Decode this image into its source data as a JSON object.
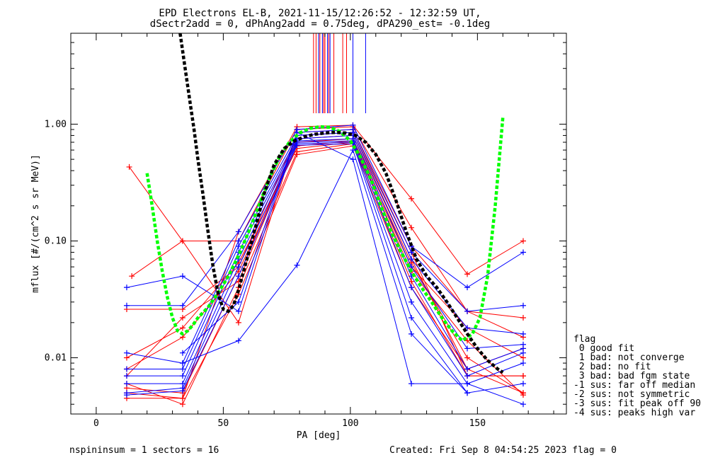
{
  "chart_data": {
    "type": "line",
    "title_line1": "EPD Electrons EL-B, 2021-11-15/12:26:52 - 12:32:59 UT,",
    "title_line2": "dSectr2add = 0, dPhAng2add = 0.75deg, dPA290_est=  -0.1deg",
    "xlabel": "PA [deg]",
    "ylabel": "mflux [#/(cm^2 s sr MeV)]",
    "xlim": [
      -10,
      185
    ],
    "ylim": [
      0.0033,
      6.0
    ],
    "yscale": "log",
    "x_ticks": [
      0,
      50,
      100,
      150
    ],
    "y_ticks": [
      0.01,
      0.1,
      1.0
    ],
    "y_tick_labels": [
      "0.01",
      "0.10",
      "1.00"
    ],
    "colors": {
      "red": "#ff0000",
      "blue": "#0000ff",
      "black": "#000000",
      "green": "#00ff00"
    },
    "series": [
      {
        "color": "red",
        "x": [
          12,
          34,
          56,
          79,
          101,
          124,
          146,
          168
        ],
        "y": [
          0.0045,
          0.0045,
          0.12,
          0.95,
          0.98,
          0.23,
          0.052,
          0.1
        ]
      },
      {
        "color": "red",
        "x": [
          13,
          34,
          56,
          79,
          101,
          124,
          146,
          168
        ],
        "y": [
          0.43,
          0.1,
          0.1,
          0.9,
          0.95,
          0.13,
          0.025,
          0.022
        ]
      },
      {
        "color": "red",
        "x": [
          14,
          34,
          56,
          79,
          101,
          124,
          146,
          168
        ],
        "y": [
          0.05,
          0.1,
          0.02,
          0.85,
          0.9,
          0.09,
          0.025,
          0.015
        ]
      },
      {
        "color": "red",
        "x": [
          12,
          34,
          56,
          79,
          101,
          124,
          146,
          168
        ],
        "y": [
          0.026,
          0.026,
          0.06,
          0.8,
          0.85,
          0.08,
          0.007,
          0.007
        ]
      },
      {
        "color": "red",
        "x": [
          12,
          34,
          56,
          79,
          101,
          124,
          146,
          168
        ],
        "y": [
          0.0055,
          0.005,
          0.05,
          0.75,
          0.8,
          0.07,
          0.008,
          0.012
        ]
      },
      {
        "color": "red",
        "x": [
          12,
          34,
          56,
          79,
          101,
          124,
          146,
          168
        ],
        "y": [
          0.007,
          0.022,
          0.045,
          0.7,
          0.75,
          0.065,
          0.01,
          0.005
        ]
      },
      {
        "color": "red",
        "x": [
          12,
          34,
          56,
          79,
          101,
          124,
          146,
          168
        ],
        "y": [
          0.008,
          0.015,
          0.055,
          0.65,
          0.72,
          0.06,
          0.018,
          0.01
        ]
      },
      {
        "color": "red",
        "x": [
          12,
          34,
          56,
          79,
          101,
          124,
          146,
          168
        ],
        "y": [
          0.01,
          0.018,
          0.065,
          0.62,
          0.7,
          0.055,
          0.014,
          0.0048
        ]
      },
      {
        "color": "red",
        "x": [
          12,
          34,
          56,
          79,
          101,
          124,
          146,
          168
        ],
        "y": [
          0.006,
          0.004,
          0.04,
          0.58,
          0.68,
          0.045,
          0.007,
          0.007
        ]
      },
      {
        "color": "red",
        "x": [
          12,
          34,
          56,
          79,
          101,
          124,
          146,
          168
        ],
        "y": [
          0.005,
          0.0045,
          0.035,
          0.55,
          0.65,
          0.04,
          0.008,
          0.005
        ]
      },
      {
        "color": "blue",
        "x": [
          12,
          34,
          56,
          79,
          101,
          124,
          146,
          168
        ],
        "y": [
          0.028,
          0.028,
          0.12,
          0.9,
          0.98,
          0.09,
          0.04,
          0.08
        ]
      },
      {
        "color": "blue",
        "x": [
          12,
          34,
          56,
          79,
          101,
          124,
          146,
          168
        ],
        "y": [
          0.04,
          0.05,
          0.025,
          0.85,
          0.9,
          0.08,
          0.025,
          0.028
        ]
      },
      {
        "color": "blue",
        "x": [
          12,
          34,
          56,
          79,
          101,
          124,
          146,
          168
        ],
        "y": [
          0.011,
          0.009,
          0.1,
          0.8,
          0.85,
          0.07,
          0.018,
          0.016
        ]
      },
      {
        "color": "blue",
        "x": [
          12,
          34,
          56,
          79,
          101,
          124,
          146,
          168
        ],
        "y": [
          0.008,
          0.008,
          0.09,
          0.75,
          0.8,
          0.06,
          0.012,
          0.013
        ]
      },
      {
        "color": "blue",
        "x": [
          12,
          34,
          56,
          79,
          101,
          124,
          146,
          168
        ],
        "y": [
          0.007,
          0.007,
          0.08,
          0.72,
          0.75,
          0.05,
          0.008,
          0.012
        ]
      },
      {
        "color": "blue",
        "x": [
          12,
          34,
          56,
          79,
          101,
          124,
          146,
          168
        ],
        "y": [
          0.006,
          0.006,
          0.07,
          0.7,
          0.72,
          0.04,
          0.007,
          0.011
        ]
      },
      {
        "color": "blue",
        "x": [
          12,
          34,
          56,
          79,
          101,
          124,
          146,
          168
        ],
        "y": [
          0.005,
          0.0055,
          0.06,
          0.68,
          0.7,
          0.03,
          0.006,
          0.009
        ]
      },
      {
        "color": "blue",
        "x": [
          12,
          34,
          56,
          79,
          101,
          124,
          146,
          168
        ],
        "y": [
          0.0048,
          0.0052,
          0.05,
          0.66,
          0.68,
          0.022,
          0.005,
          0.006
        ]
      },
      {
        "color": "blue",
        "x": [
          34,
          56,
          79,
          101,
          124,
          146,
          168
        ],
        "y": [
          0.011,
          0.03,
          0.85,
          0.5,
          0.006,
          0.006,
          0.004
        ]
      },
      {
        "color": "blue",
        "x": [
          34,
          56,
          79,
          101,
          124,
          146
        ],
        "y": [
          0.009,
          0.014,
          0.062,
          0.6,
          0.016,
          0.005
        ]
      }
    ],
    "fit_black": {
      "x": [
        33,
        35,
        37,
        38.5,
        40,
        42,
        44,
        46,
        48,
        50,
        52,
        54,
        56,
        58,
        60,
        63,
        66,
        70,
        74,
        78,
        82,
        86,
        90,
        94,
        98,
        102,
        106,
        110,
        114,
        118,
        122,
        126,
        130,
        134,
        138,
        142,
        146,
        150,
        154,
        158,
        160
      ],
      "y": [
        6.0,
        3.0,
        1.5,
        0.9,
        0.5,
        0.25,
        0.12,
        0.06,
        0.035,
        0.026,
        0.025,
        0.028,
        0.038,
        0.055,
        0.08,
        0.14,
        0.25,
        0.45,
        0.62,
        0.72,
        0.78,
        0.82,
        0.84,
        0.85,
        0.84,
        0.8,
        0.7,
        0.55,
        0.38,
        0.22,
        0.12,
        0.07,
        0.05,
        0.04,
        0.03,
        0.022,
        0.016,
        0.012,
        0.0095,
        0.008,
        0.0075
      ]
    },
    "fit_green": {
      "x": [
        20,
        22,
        24,
        26,
        28,
        30,
        32,
        34,
        36,
        38,
        40,
        44,
        48,
        52,
        56,
        60,
        64,
        68,
        72,
        76,
        80,
        84,
        88,
        92,
        96,
        100,
        104,
        108,
        112,
        116,
        120,
        124,
        128,
        132,
        136,
        140,
        144,
        148,
        151,
        154,
        157,
        160
      ],
      "y": [
        0.38,
        0.2,
        0.1,
        0.055,
        0.033,
        0.022,
        0.017,
        0.016,
        0.017,
        0.019,
        0.022,
        0.027,
        0.036,
        0.05,
        0.075,
        0.12,
        0.2,
        0.34,
        0.52,
        0.7,
        0.84,
        0.92,
        0.95,
        0.94,
        0.86,
        0.72,
        0.52,
        0.34,
        0.2,
        0.12,
        0.08,
        0.055,
        0.04,
        0.03,
        0.022,
        0.017,
        0.014,
        0.016,
        0.022,
        0.05,
        0.2,
        1.15
      ]
    },
    "vlines": [
      {
        "x": 85.5,
        "color": "red"
      },
      {
        "x": 86.5,
        "color": "red"
      },
      {
        "x": 87.5,
        "color": "blue"
      },
      {
        "x": 88.0,
        "color": "red"
      },
      {
        "x": 89.0,
        "color": "blue"
      },
      {
        "x": 89.5,
        "color": "red"
      },
      {
        "x": 90.0,
        "color": "red"
      },
      {
        "x": 91.0,
        "color": "blue"
      },
      {
        "x": 91.5,
        "color": "red"
      },
      {
        "x": 92.0,
        "color": "blue"
      },
      {
        "x": 93.5,
        "color": "red"
      },
      {
        "x": 97.0,
        "color": "red"
      },
      {
        "x": 98.5,
        "color": "red"
      },
      {
        "x": 101.0,
        "color": "blue"
      },
      {
        "x": 106.0,
        "color": "blue"
      }
    ],
    "legend": {
      "placement": "right",
      "title": "flag",
      "entries": [
        " 0 good fit",
        " 1 bad: not converge",
        " 2 bad: no fit",
        " 3 bad: bad fgm state",
        "-1 sus: far off median",
        "-2 sus: not symmetric",
        "-3 sus: fit peak off 90",
        "-4 sus: peaks high var"
      ]
    },
    "footer_left": "nspininsum =  1  sectors = 16",
    "footer_right": "Created: Fri Sep  8 04:54:25 2023   flag = 0"
  }
}
